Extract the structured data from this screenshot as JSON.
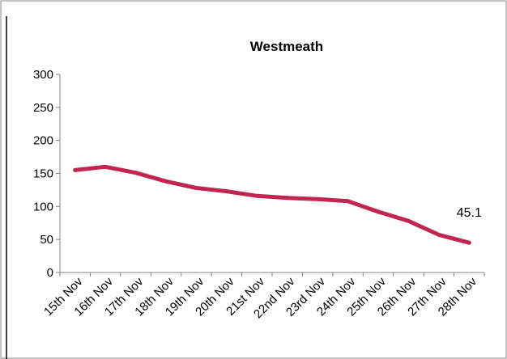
{
  "chart_data": {
    "type": "line",
    "title": "Westmeath",
    "xlabel": "",
    "ylabel": "",
    "categories": [
      "15th Nov",
      "16th Nov",
      "17th Nov",
      "18th Nov",
      "19th Nov",
      "20th Nov",
      "21st Nov",
      "22nd Nov",
      "23rd Nov",
      "24th Nov",
      "25th Nov",
      "26th Nov",
      "27th Nov",
      "28th Nov"
    ],
    "series": [
      {
        "values": [
          155,
          160,
          151,
          138,
          128,
          123,
          116,
          113,
          111,
          108,
          92,
          78,
          57,
          45.1
        ],
        "color": "#c0264f"
      }
    ],
    "ylim": [
      0,
      300
    ],
    "yticks": [
      "0",
      "50",
      "100",
      "150",
      "200",
      "250",
      "300"
    ],
    "grid": false,
    "legend": "none",
    "annotations": [
      {
        "category": "28th Nov",
        "text": "45.1"
      }
    ]
  }
}
